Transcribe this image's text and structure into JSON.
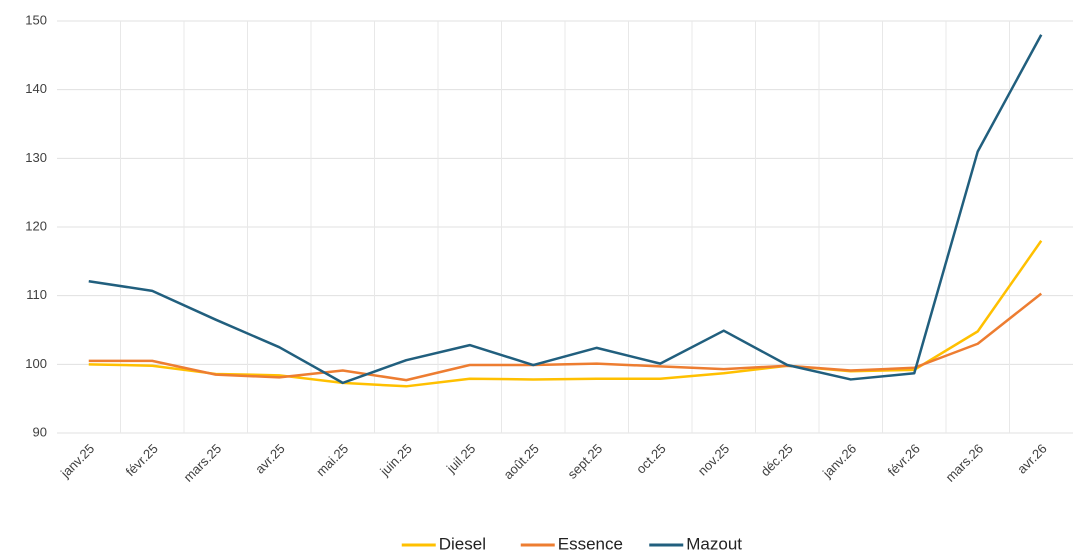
{
  "chart_data": {
    "type": "line",
    "categories": [
      "janv.25",
      "févr.25",
      "mars.25",
      "avr.25",
      "mai.25",
      "juin.25",
      "juil.25",
      "août.25",
      "sept.25",
      "oct.25",
      "nov.25",
      "déc.25",
      "janv.26",
      "févr.26",
      "mars.26",
      "avr.26"
    ],
    "series": [
      {
        "name": "Diesel",
        "color": "#ffc000",
        "values": [
          100,
          99.8,
          98.6,
          98.4,
          97.3,
          96.8,
          97.9,
          97.8,
          97.9,
          97.9,
          98.7,
          99.8,
          99.0,
          99.2,
          104.8,
          118
        ]
      },
      {
        "name": "Essence",
        "color": "#ed7d31",
        "values": [
          100.5,
          100.5,
          98.5,
          98.1,
          99.1,
          97.7,
          99.9,
          99.9,
          100.1,
          99.7,
          99.3,
          99.8,
          99.1,
          99.5,
          103,
          110.3
        ]
      },
      {
        "name": "Mazout",
        "color": "#215f7e",
        "values": [
          112.1,
          110.7,
          106.5,
          102.5,
          97.3,
          100.6,
          102.8,
          99.9,
          102.4,
          100.1,
          104.9,
          99.9,
          97.8,
          98.7,
          131,
          148
        ]
      }
    ],
    "ylim": [
      90,
      150
    ],
    "yticks": [
      90,
      100,
      110,
      120,
      130,
      140,
      150
    ],
    "grid": true,
    "legend": "bottom"
  }
}
